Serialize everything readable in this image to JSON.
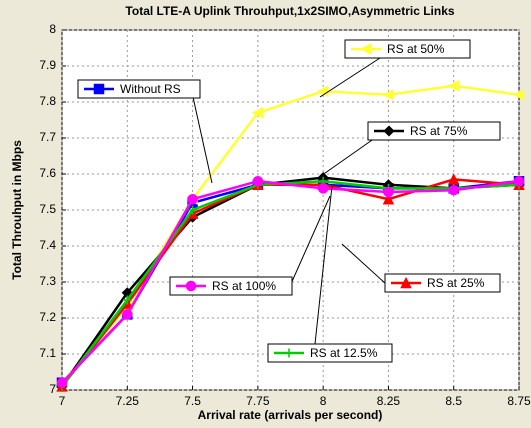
{
  "chart_data": {
    "type": "line",
    "title": "Total LTE-A Uplink Throuhput,1x2SIMO,Asymmetric Links",
    "x_label": "Arrival rate (arrivals per second)",
    "y_label": "Total Throuhput in Mbps",
    "x": [
      7,
      7.25,
      7.5,
      7.75,
      8,
      8.25,
      8.5,
      8.75
    ],
    "xlim": [
      7,
      8.75
    ],
    "xticks": [
      7,
      7.25,
      7.5,
      7.75,
      8,
      8.25,
      8.5,
      8.75
    ],
    "ylim": [
      7,
      8
    ],
    "yticks": [
      7,
      7.1,
      7.2,
      7.3,
      7.4,
      7.5,
      7.6,
      7.7,
      7.8,
      7.9,
      8
    ],
    "grid": true,
    "series": [
      {
        "name": "Without RS",
        "color": "#0000ff",
        "marker": "square",
        "values": [
          7.02,
          7.21,
          7.52,
          7.57,
          7.57,
          7.56,
          7.56,
          7.58
        ]
      },
      {
        "name": "RS at 50%",
        "color": "#ffff33",
        "marker": "triangle-left",
        "values": [
          7.02,
          7.23,
          7.53,
          7.77,
          7.83,
          7.82,
          7.845,
          7.82
        ]
      },
      {
        "name": "RS at 75%",
        "color": "#000000",
        "marker": "diamond",
        "values": [
          7.01,
          7.27,
          7.48,
          7.57,
          7.59,
          7.57,
          7.56,
          7.57
        ]
      },
      {
        "name": "RS at 25%",
        "color": "#ff0000",
        "marker": "triangle",
        "values": [
          7.01,
          7.24,
          7.49,
          7.57,
          7.57,
          7.53,
          7.585,
          7.57
        ]
      },
      {
        "name": "RS at 12.5%",
        "color": "#00cc00",
        "marker": "plus",
        "values": [
          7.01,
          7.25,
          7.5,
          7.57,
          7.58,
          7.56,
          7.56,
          7.57
        ]
      },
      {
        "name": "RS at 100%",
        "color": "#ff00ff",
        "marker": "circle",
        "values": [
          7.02,
          7.21,
          7.53,
          7.58,
          7.56,
          7.55,
          7.555,
          7.58
        ]
      }
    ]
  }
}
